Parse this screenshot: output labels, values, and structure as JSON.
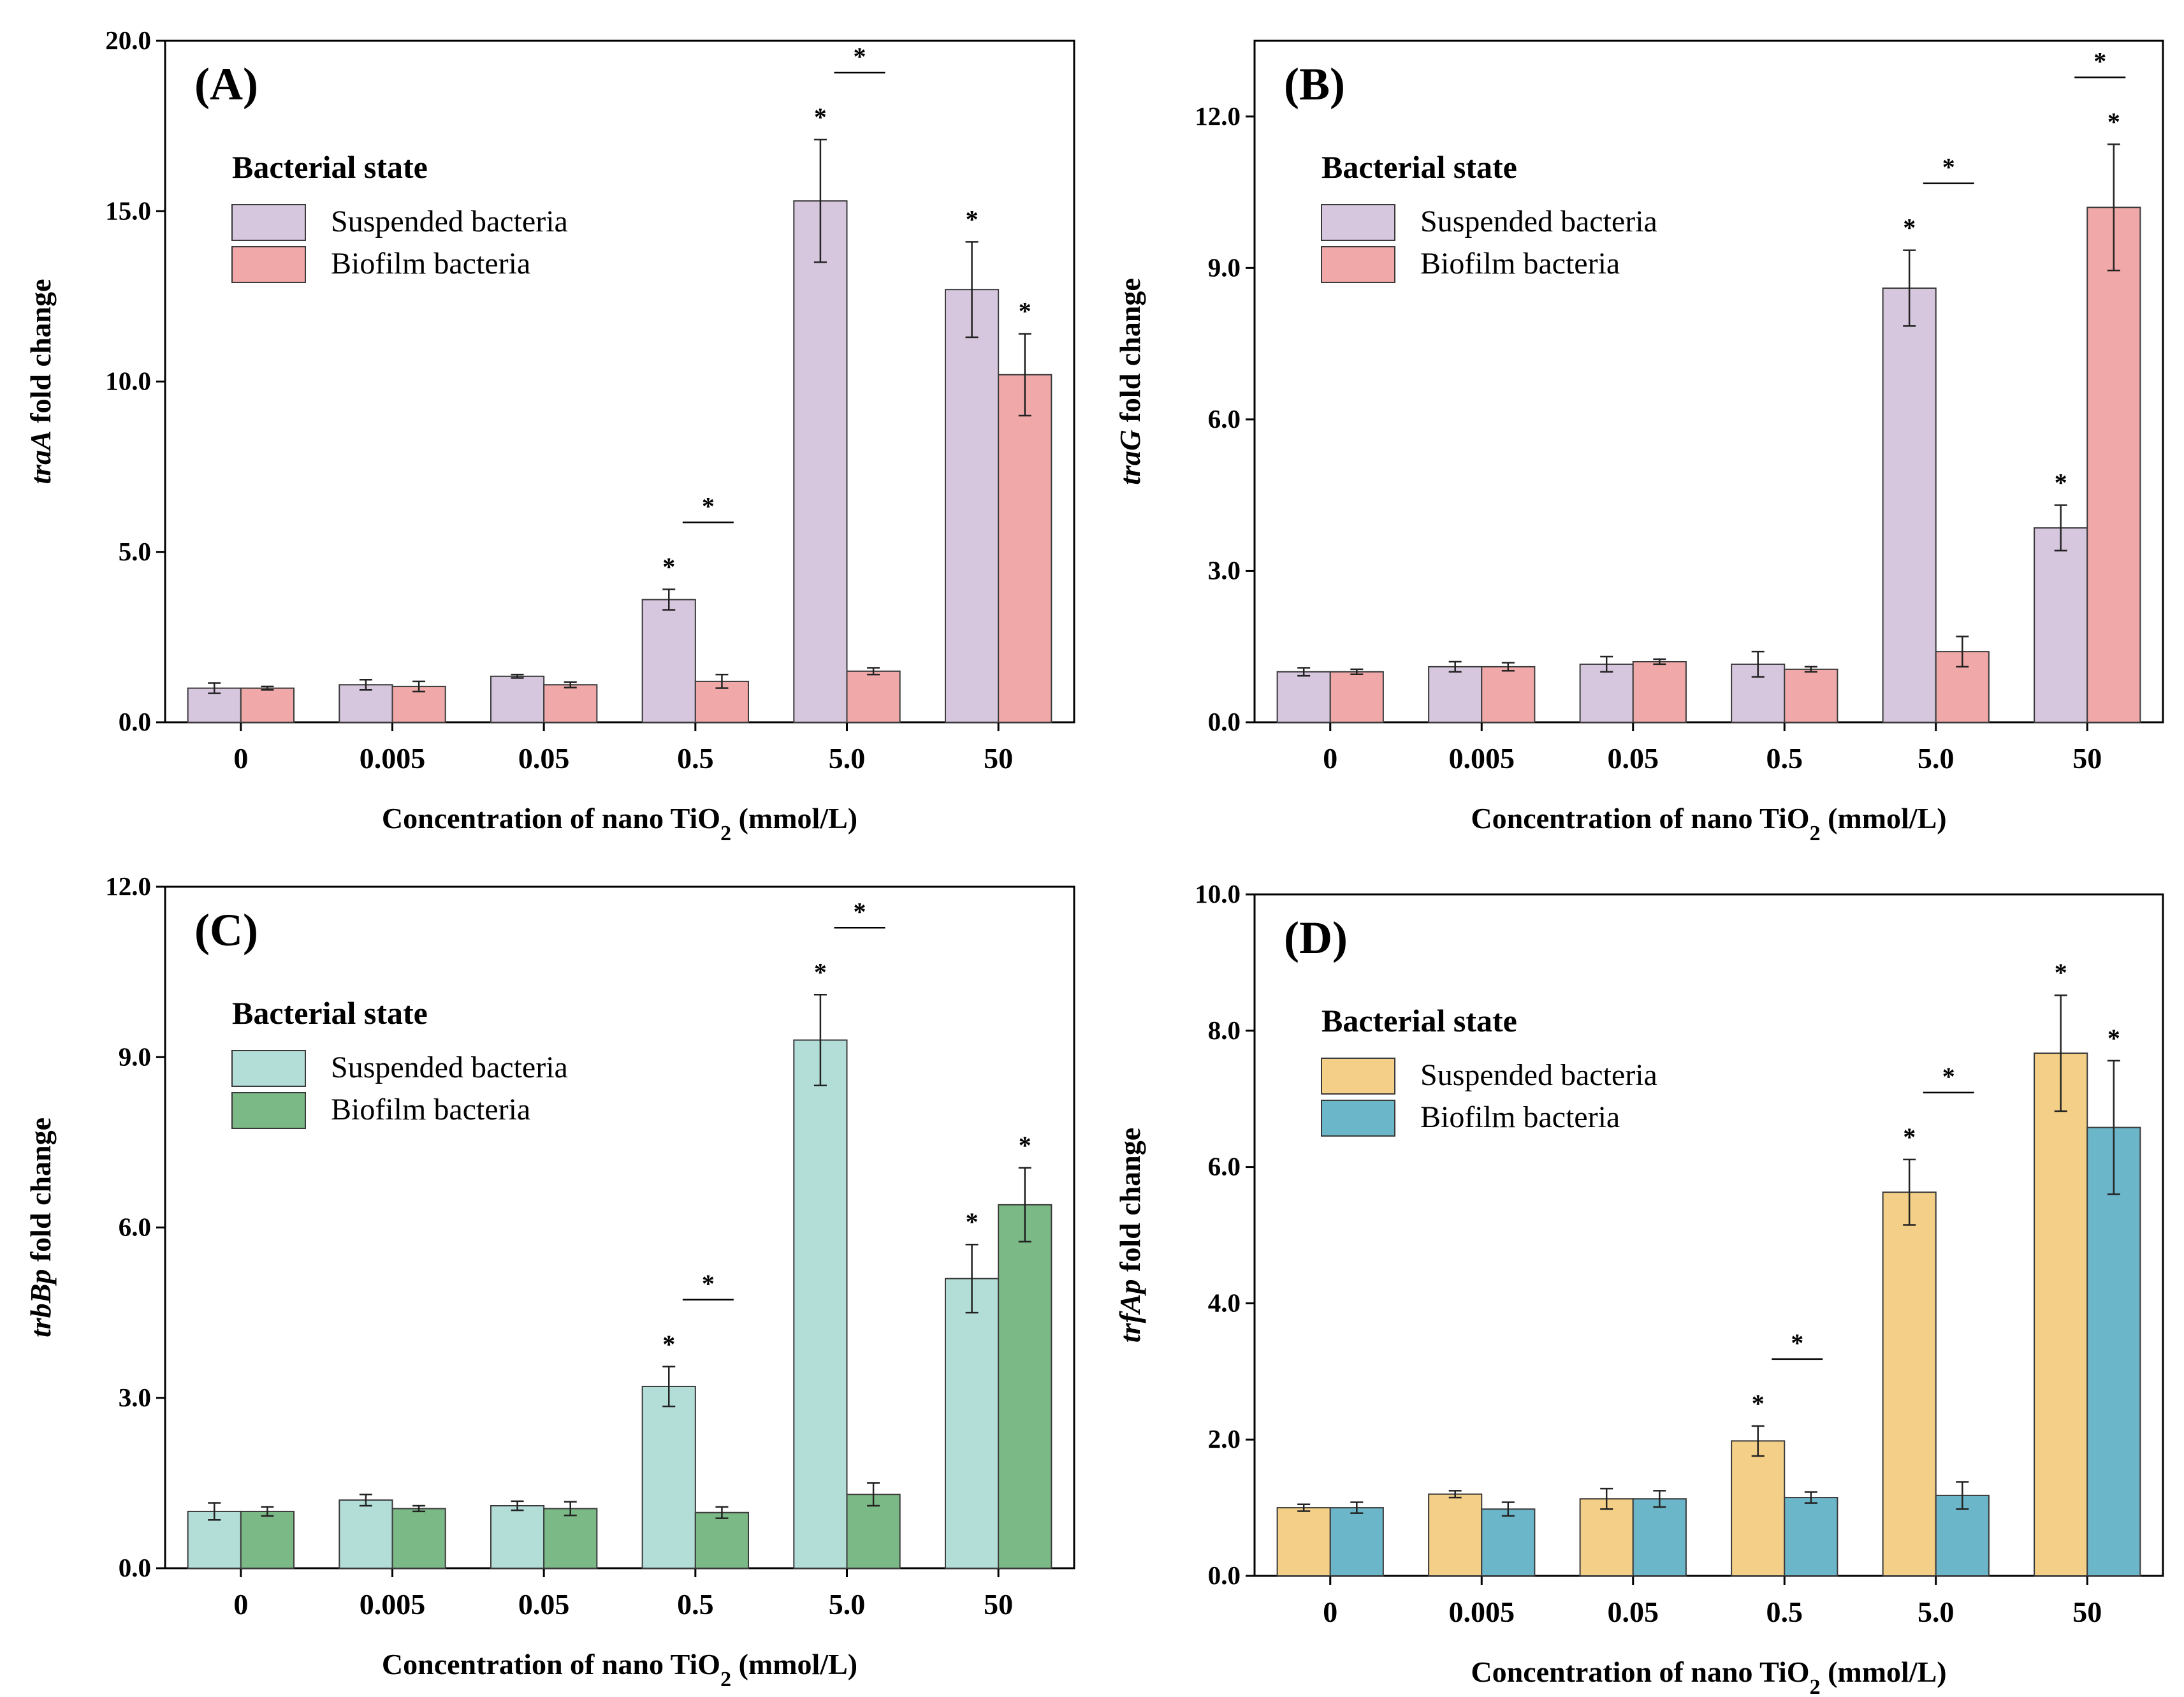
{
  "chart_data": [
    {
      "type": "bar",
      "panel_label": "(A)",
      "gene": "traA",
      "ylabel_suffix": " fold change",
      "xlabel": {
        "main": "Concentration of nano TiO",
        "sub": "2",
        "tail": " (mmol/L)"
      },
      "categories": [
        "0",
        "0.005",
        "0.05",
        "0.5",
        "5.0",
        "50"
      ],
      "yticks": [
        "0.0",
        "5.0",
        "10.0",
        "15.0",
        "20.0"
      ],
      "ylim": [
        0,
        20
      ],
      "legend": {
        "title": "Bacterial state",
        "position": "upper-left"
      },
      "series": [
        {
          "name": "Suspended bacteria",
          "color": "#d6c6de",
          "values": [
            1.0,
            1.1,
            1.35,
            3.6,
            15.3,
            12.7
          ],
          "errors": [
            0.15,
            0.15,
            0.05,
            0.3,
            1.8,
            1.4
          ],
          "stars": [
            "",
            "",
            "",
            "*",
            "*",
            "*"
          ]
        },
        {
          "name": "Biofilm bacteria",
          "color": "#f0a9a8",
          "values": [
            1.0,
            1.05,
            1.1,
            1.2,
            1.5,
            10.2
          ],
          "errors": [
            0.05,
            0.15,
            0.08,
            0.2,
            0.1,
            1.2
          ],
          "stars": [
            "",
            "",
            "",
            "",
            "",
            "*"
          ]
        }
      ],
      "brackets": [
        {
          "category": 3,
          "label": "*"
        },
        {
          "category": 4,
          "label": "*"
        }
      ]
    },
    {
      "type": "bar",
      "panel_label": "(B)",
      "gene": "traG",
      "ylabel_suffix": " fold change",
      "xlabel": {
        "main": "Concentration of nano TiO",
        "sub": "2",
        "tail": " (mmol/L)"
      },
      "categories": [
        "0",
        "0.005",
        "0.05",
        "0.5",
        "5.0",
        "50"
      ],
      "yticks": [
        "0.0",
        "3.0",
        "6.0",
        "9.0",
        "12.0"
      ],
      "ylim": [
        0,
        13.5
      ],
      "legend": {
        "title": "Bacterial state",
        "position": "upper-left"
      },
      "series": [
        {
          "name": "Suspended bacteria",
          "color": "#d6c6de",
          "values": [
            1.0,
            1.1,
            1.15,
            1.15,
            8.6,
            3.85
          ],
          "errors": [
            0.08,
            0.1,
            0.15,
            0.25,
            0.75,
            0.45
          ],
          "stars": [
            "",
            "",
            "",
            "",
            "*",
            "*"
          ]
        },
        {
          "name": "Biofilm bacteria",
          "color": "#f0a9a8",
          "values": [
            1.0,
            1.1,
            1.2,
            1.05,
            1.4,
            10.2
          ],
          "errors": [
            0.05,
            0.08,
            0.05,
            0.05,
            0.3,
            1.25
          ],
          "stars": [
            "",
            "",
            "",
            "",
            "",
            "*"
          ]
        }
      ],
      "brackets": [
        {
          "category": 4,
          "label": "*"
        },
        {
          "category": 5,
          "label": "*"
        }
      ]
    },
    {
      "type": "bar",
      "panel_label": "(C)",
      "gene": "trbBp",
      "ylabel_suffix": " fold change",
      "xlabel": {
        "main": "Concentration of nano TiO",
        "sub": "2",
        "tail": " (mmol/L)"
      },
      "categories": [
        "0",
        "0.005",
        "0.05",
        "0.5",
        "5.0",
        "50"
      ],
      "yticks": [
        "0.0",
        "3.0",
        "6.0",
        "9.0",
        "12.0"
      ],
      "ylim": [
        0,
        12
      ],
      "legend": {
        "title": "Bacterial state",
        "position": "upper-left"
      },
      "series": [
        {
          "name": "Suspended bacteria",
          "color": "#b3ded8",
          "values": [
            1.0,
            1.2,
            1.1,
            3.2,
            9.3,
            5.1
          ],
          "errors": [
            0.15,
            0.1,
            0.08,
            0.35,
            0.8,
            0.6
          ],
          "stars": [
            "",
            "",
            "",
            "*",
            "*",
            "*"
          ]
        },
        {
          "name": "Biofilm bacteria",
          "color": "#7bb986",
          "values": [
            1.0,
            1.05,
            1.05,
            0.98,
            1.3,
            6.4
          ],
          "errors": [
            0.08,
            0.05,
            0.12,
            0.1,
            0.2,
            0.65
          ],
          "stars": [
            "",
            "",
            "",
            "",
            "",
            "*"
          ]
        }
      ],
      "brackets": [
        {
          "category": 3,
          "label": "*"
        },
        {
          "category": 4,
          "label": "*"
        }
      ]
    },
    {
      "type": "bar",
      "panel_label": "(D)",
      "gene": "trfAp",
      "ylabel_suffix": " fold change",
      "xlabel": {
        "main": "Concentration of nano TiO",
        "sub": "2",
        "tail": " (mmol/L)"
      },
      "categories": [
        "0",
        "0.005",
        "0.05",
        "0.5",
        "5.0",
        "50"
      ],
      "yticks": [
        "0.0",
        "2.0",
        "4.0",
        "6.0",
        "8.0",
        "10.0"
      ],
      "ylim": [
        0,
        10
      ],
      "legend": {
        "title": "Bacterial state",
        "position": "upper-left"
      },
      "series": [
        {
          "name": "Suspended bacteria",
          "color": "#f3cf87",
          "values": [
            1.0,
            1.2,
            1.13,
            1.98,
            5.63,
            7.67
          ],
          "errors": [
            0.05,
            0.05,
            0.15,
            0.22,
            0.48,
            0.85
          ],
          "stars": [
            "",
            "",
            "",
            "*",
            "*",
            "*"
          ]
        },
        {
          "name": "Biofilm bacteria",
          "color": "#6bb6c9",
          "values": [
            1.0,
            0.98,
            1.13,
            1.15,
            1.18,
            6.58
          ],
          "errors": [
            0.08,
            0.1,
            0.12,
            0.08,
            0.2,
            0.98
          ],
          "stars": [
            "",
            "",
            "",
            "",
            "",
            "*"
          ]
        }
      ],
      "brackets": [
        {
          "category": 3,
          "label": "*"
        },
        {
          "category": 4,
          "label": "*"
        }
      ]
    }
  ]
}
